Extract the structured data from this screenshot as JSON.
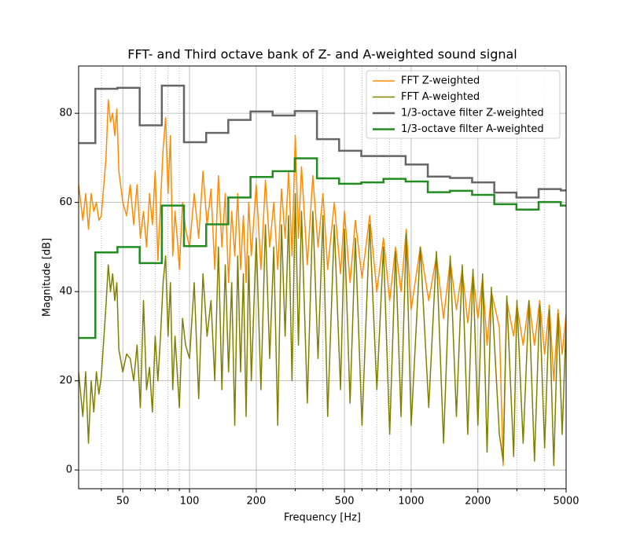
{
  "chart_data": {
    "type": "line",
    "title": "FFT- and Third octave bank of Z- and A-weighted sound signal",
    "xlabel": "Frequency [Hz]",
    "ylabel": "Magnitude [dB]",
    "xscale": "log",
    "xlim": [
      31.6,
      5000
    ],
    "ylim": [
      -4.2,
      90.6
    ],
    "xticks": [
      50,
      100,
      200,
      500,
      1000,
      2000,
      5000
    ],
    "xminor_ticks": [
      40,
      60,
      70,
      80,
      90,
      300,
      400,
      600,
      700,
      800,
      900,
      3000,
      4000
    ],
    "yticks": [
      0,
      20,
      40,
      60,
      80
    ],
    "grid": true,
    "legend": "upper right",
    "series": [
      {
        "name": "FFT Z-weighted",
        "color": "#ff8c00",
        "linewidth": 1.5,
        "drawstyle": "default",
        "x": [
          31.6,
          33,
          34,
          35,
          36,
          37,
          38,
          39,
          40,
          42,
          43,
          44,
          45,
          46,
          47,
          48,
          50,
          52,
          54,
          56,
          58,
          60,
          62,
          64,
          66,
          68,
          70,
          72,
          74,
          76,
          78,
          80,
          82,
          84,
          86,
          88,
          90,
          93,
          96,
          100,
          105,
          110,
          115,
          120,
          125,
          130,
          135,
          140,
          145,
          150,
          155,
          160,
          165,
          170,
          175,
          180,
          185,
          190,
          200,
          210,
          220,
          230,
          240,
          250,
          260,
          270,
          280,
          290,
          300,
          310,
          320,
          340,
          360,
          380,
          400,
          420,
          450,
          480,
          500,
          530,
          560,
          600,
          650,
          700,
          750,
          800,
          850,
          900,
          950,
          1000,
          1100,
          1200,
          1300,
          1400,
          1500,
          1600,
          1700,
          1800,
          1900,
          2000,
          2100,
          2200,
          2300,
          2500,
          2600,
          2700,
          2900,
          3000,
          3200,
          3400,
          3600,
          3800,
          4000,
          4200,
          4400,
          4600,
          4800,
          5000
        ],
        "values": [
          64,
          56,
          62,
          54,
          62,
          58,
          60,
          56,
          57,
          70,
          83,
          78,
          80,
          75,
          81,
          67,
          60,
          57,
          64,
          55,
          64,
          52,
          58,
          50,
          62,
          55,
          67,
          47,
          60,
          72,
          79,
          62,
          75,
          48,
          58,
          52,
          45,
          60,
          54,
          50,
          62,
          52,
          67,
          55,
          63,
          45,
          66,
          50,
          62,
          42,
          58,
          48,
          62,
          45,
          57,
          42,
          60,
          48,
          64,
          45,
          65,
          50,
          60,
          45,
          63,
          52,
          67,
          48,
          75,
          52,
          68,
          46,
          66,
          50,
          62,
          45,
          60,
          44,
          58,
          42,
          56,
          43,
          57,
          40,
          52,
          38,
          50,
          40,
          54,
          36,
          50,
          38,
          48,
          34,
          47,
          36,
          45,
          33,
          44,
          34,
          43,
          28,
          40,
          32,
          1,
          38,
          30,
          37,
          28,
          38,
          28,
          38,
          26,
          37,
          20,
          36,
          26,
          35
        ]
      },
      {
        "name": "FFT A-weighted",
        "color": "#808000",
        "linewidth": 1.5,
        "drawstyle": "default",
        "x": [
          31.6,
          33,
          34,
          35,
          36,
          37,
          38,
          39,
          40,
          42,
          43,
          44,
          45,
          46,
          47,
          48,
          50,
          52,
          54,
          56,
          58,
          60,
          62,
          64,
          66,
          68,
          70,
          72,
          74,
          76,
          78,
          80,
          82,
          84,
          86,
          88,
          90,
          93,
          96,
          100,
          105,
          110,
          115,
          120,
          125,
          130,
          135,
          140,
          145,
          150,
          155,
          160,
          165,
          170,
          175,
          180,
          185,
          190,
          200,
          210,
          220,
          230,
          240,
          250,
          260,
          270,
          280,
          290,
          300,
          310,
          320,
          340,
          360,
          380,
          400,
          420,
          450,
          480,
          500,
          530,
          560,
          600,
          650,
          700,
          750,
          800,
          850,
          900,
          950,
          1000,
          1100,
          1200,
          1300,
          1400,
          1500,
          1600,
          1700,
          1800,
          1900,
          2000,
          2100,
          2200,
          2300,
          2500,
          2600,
          2700,
          2900,
          3000,
          3200,
          3400,
          3600,
          3800,
          4000,
          4200,
          4400,
          4600,
          4800,
          5000
        ],
        "values": [
          22,
          12,
          22,
          6,
          20,
          13,
          22,
          17,
          21,
          37,
          46,
          40,
          44,
          38,
          42,
          27,
          22,
          26,
          25,
          20,
          28,
          14,
          38,
          18,
          23,
          13,
          30,
          20,
          30,
          42,
          48,
          30,
          42,
          18,
          30,
          22,
          14,
          34,
          28,
          25,
          42,
          16,
          44,
          30,
          38,
          20,
          50,
          18,
          46,
          22,
          42,
          10,
          48,
          22,
          44,
          12,
          48,
          20,
          52,
          18,
          55,
          25,
          50,
          10,
          55,
          30,
          57,
          20,
          62,
          28,
          58,
          15,
          58,
          25,
          57,
          12,
          55,
          18,
          54,
          15,
          52,
          10,
          55,
          18,
          50,
          8,
          49,
          12,
          53,
          10,
          50,
          14,
          49,
          6,
          48,
          12,
          46,
          8,
          45,
          10,
          44,
          4,
          41,
          8,
          2,
          39,
          3,
          38,
          6,
          38,
          2,
          37,
          5,
          36,
          1,
          35,
          8,
          33
        ]
      },
      {
        "name": "1/3-octave filter Z-weighted",
        "color": "#666666",
        "linewidth": 2.5,
        "drawstyle": "steps-post",
        "x": [
          29.9,
          37.6,
          47.3,
          59.6,
          75.0,
          94.4,
          118.9,
          149.6,
          188.4,
          237.1,
          298.5,
          375.8,
          473.1,
          595.6,
          749.9,
          944.1,
          1188.5,
          1496.2,
          1883.6,
          2371.4,
          2985.4,
          3758.4,
          4731.5
        ],
        "values": [
          73.3,
          85.5,
          85.7,
          77.3,
          86.2,
          73.5,
          75.6,
          78.5,
          80.4,
          79.5,
          80.5,
          74.2,
          71.6,
          70.4,
          70.4,
          68.5,
          65.8,
          65.5,
          64.5,
          62.2,
          61.1,
          63.0,
          62.7
        ]
      },
      {
        "name": "1/3-octave filter A-weighted",
        "color": "#228b22",
        "linewidth": 2.5,
        "drawstyle": "steps-post",
        "x": [
          29.9,
          37.6,
          47.3,
          59.6,
          75.0,
          94.4,
          118.9,
          149.6,
          188.4,
          237.1,
          298.5,
          375.8,
          473.1,
          595.6,
          749.9,
          944.1,
          1188.5,
          1496.2,
          1883.6,
          2371.4,
          2985.4,
          3758.4,
          4731.5
        ],
        "values": [
          29.6,
          48.8,
          50.0,
          46.4,
          59.3,
          50.2,
          55.1,
          61.1,
          65.7,
          67.0,
          69.9,
          65.4,
          64.2,
          64.5,
          65.3,
          64.7,
          62.3,
          62.6,
          61.7,
          59.6,
          58.4,
          60.1,
          59.3
        ]
      }
    ]
  }
}
